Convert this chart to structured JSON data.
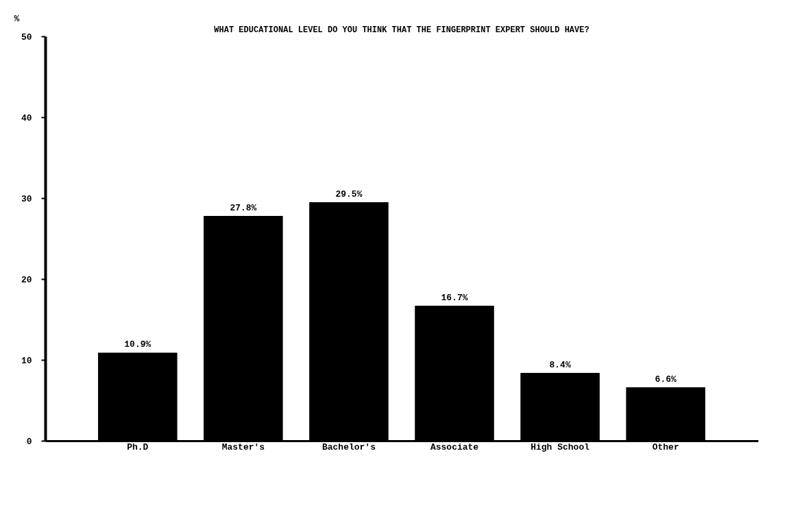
{
  "chart_data": {
    "type": "bar",
    "title": "WHAT EDUCATIONAL LEVEL DO YOU THINK THAT THE FINGERPRINT EXPERT SHOULD HAVE?",
    "ylabel": "%",
    "categories": [
      "Ph.D",
      "Master's",
      "Bachelor's",
      "Associate",
      "High School",
      "Other"
    ],
    "values": [
      10.9,
      27.8,
      29.5,
      16.7,
      8.4,
      6.6
    ],
    "value_labels": [
      "10.9%",
      "27.8%",
      "29.5%",
      "16.7%",
      "8.4%",
      "6.6%"
    ],
    "color": "#000000",
    "ylim": [
      0,
      50
    ],
    "yticks": [
      0,
      10,
      20,
      30,
      40,
      50
    ],
    "grid": false
  }
}
